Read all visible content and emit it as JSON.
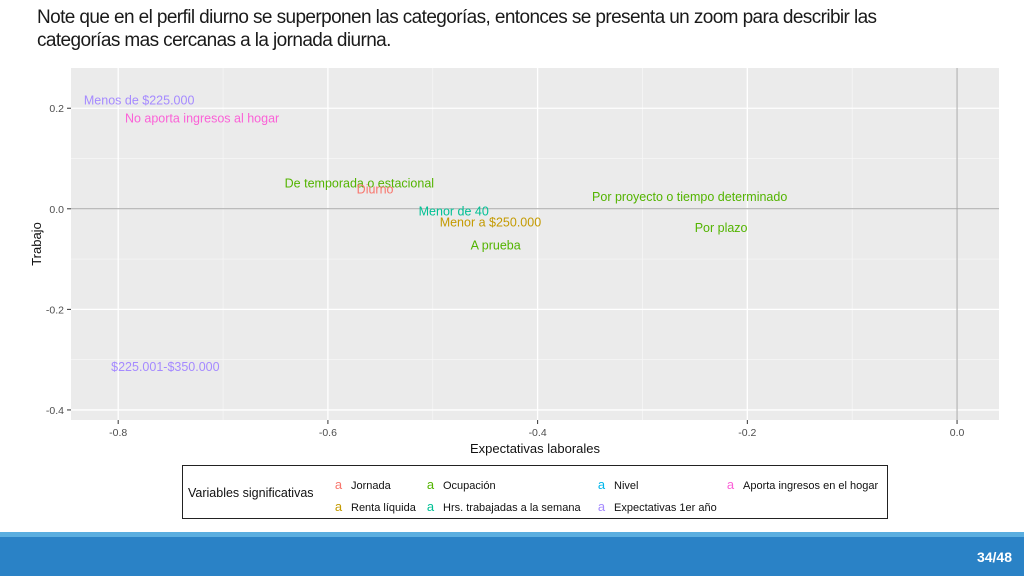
{
  "slide": {
    "title": "Note  que  en el perfil diurno se superponen las categorías, entonces se presenta  un zoom para describir las categorías mas cercanas a la jornada diurna.",
    "page_number": "34/48"
  },
  "colors": {
    "Jornada": "#f8766d",
    "Renta líquida": "#c49a00",
    "Ocupación": "#53b400",
    "Hrs. trabajadas a la semana": "#00c094",
    "Nivel": "#00b6eb",
    "Expectativas 1er año": "#a58aff",
    "Aporta ingresos en el hogar": "#fb61d7",
    "panel_bg": "#ebebeb",
    "footer": "#2a82c6"
  },
  "chart_data": {
    "type": "scatter",
    "xlabel": "Expectativas laborales",
    "ylabel": "Trabajo",
    "xlim": [
      -0.845,
      0.04
    ],
    "ylim": [
      -0.42,
      0.28
    ],
    "xticks": [
      -0.8,
      -0.6,
      -0.4,
      -0.2,
      0.0
    ],
    "xtick_labels": [
      "-0.8",
      "-0.6",
      "-0.4",
      "-0.2",
      "0.0"
    ],
    "yticks": [
      -0.4,
      -0.2,
      0.0,
      0.2
    ],
    "ytick_labels": [
      "-0.4",
      "-0.2",
      "0.0",
      "0.2"
    ],
    "grid": true,
    "reference_lines": {
      "x": 0.0,
      "y": 0.0
    },
    "points": [
      {
        "label": "Menos de $225.000",
        "x": -0.78,
        "y": 0.215,
        "group": "Expectativas 1er año"
      },
      {
        "label": "No aporta ingresos al hogar",
        "x": -0.72,
        "y": 0.18,
        "group": "Aporta ingresos en el hogar"
      },
      {
        "label": "De temporada o estacional",
        "x": -0.57,
        "y": 0.05,
        "group": "Ocupación"
      },
      {
        "label": "Diurno",
        "x": -0.555,
        "y": 0.038,
        "group": "Jornada"
      },
      {
        "label": "Menor de 40",
        "x": -0.48,
        "y": -0.005,
        "group": "Hrs. trabajadas a la semana"
      },
      {
        "label": "Menor a $250.000",
        "x": -0.445,
        "y": -0.027,
        "group": "Renta líquida"
      },
      {
        "label": "A prueba",
        "x": -0.44,
        "y": -0.073,
        "group": "Ocupación"
      },
      {
        "label": "Por proyecto o tiempo determinado",
        "x": -0.255,
        "y": 0.023,
        "group": "Ocupación"
      },
      {
        "label": "Por plazo",
        "x": -0.225,
        "y": -0.038,
        "group": "Ocupación"
      },
      {
        "label": "$225.001-$350.000",
        "x": -0.755,
        "y": -0.315,
        "group": "Expectativas 1er año"
      }
    ]
  },
  "legend": {
    "title": "Variables significativas",
    "key_glyph": "a",
    "items": [
      {
        "label": "Jornada"
      },
      {
        "label": "Renta líquida"
      },
      {
        "label": "Ocupación"
      },
      {
        "label": "Hrs. trabajadas a la semana"
      },
      {
        "label": "Nivel"
      },
      {
        "label": "Expectativas 1er año"
      },
      {
        "label": "Aporta ingresos en el hogar"
      }
    ]
  }
}
